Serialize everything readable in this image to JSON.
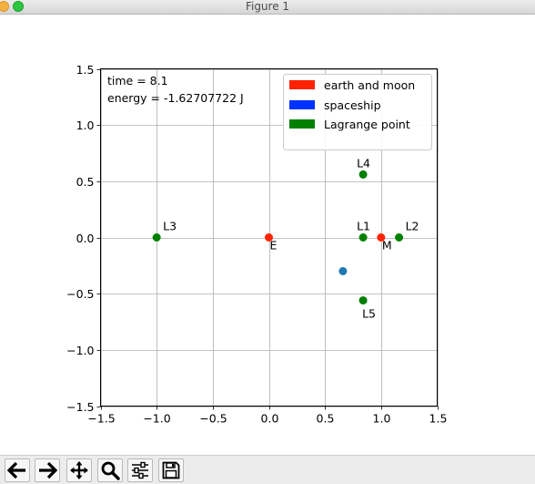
{
  "window": {
    "title": "Figure 1"
  },
  "toolbar": {
    "buttons": [
      {
        "name": "back",
        "icon": "arrow-left-icon"
      },
      {
        "name": "forward",
        "icon": "arrow-right-icon"
      },
      {
        "name": "pan",
        "icon": "move-icon"
      },
      {
        "name": "zoom",
        "icon": "magnifier-icon"
      },
      {
        "name": "configure-subplots",
        "icon": "sliders-icon"
      },
      {
        "name": "save",
        "icon": "floppy-disk-icon"
      }
    ]
  },
  "chart_data": {
    "type": "scatter",
    "title": "",
    "xlabel": "",
    "ylabel": "",
    "xlim": [
      -1.5,
      1.5
    ],
    "ylim": [
      -1.5,
      1.5
    ],
    "grid": true,
    "xticks": [
      "−1.5",
      "−1.0",
      "−0.5",
      "0.0",
      "0.5",
      "1.0",
      "1.5"
    ],
    "yticks": [
      "1.5",
      "1.0",
      "0.5",
      "0.0",
      "−0.5",
      "−1.0",
      "−1.5"
    ],
    "xtick_values": [
      -1.5,
      -1.0,
      -0.5,
      0.0,
      0.5,
      1.0,
      1.5
    ],
    "ytick_values": [
      1.5,
      1.0,
      0.5,
      0.0,
      -0.5,
      -1.0,
      -1.5
    ],
    "info_lines": [
      "time = 8.1",
      "energy = -1.62707722 J"
    ],
    "legend": {
      "position": "upper right",
      "entries": [
        {
          "label": "earth and moon",
          "color": "#ff2200"
        },
        {
          "label": "spaceship",
          "color": "#0033ff"
        },
        {
          "label": "Lagrange point",
          "color": "#008000"
        }
      ]
    },
    "points": [
      {
        "label": "E",
        "x": 0.0,
        "y": 0.0,
        "color": "#ff2200",
        "label_pos": "below-right"
      },
      {
        "label": "M",
        "x": 1.0,
        "y": 0.0,
        "color": "#ff2200",
        "label_pos": "below-right"
      },
      {
        "label": "L1",
        "x": 0.84,
        "y": 0.0,
        "color": "#008000",
        "label_pos": "above"
      },
      {
        "label": "L2",
        "x": 1.16,
        "y": 0.0,
        "color": "#008000",
        "label_pos": "above-right"
      },
      {
        "label": "L3",
        "x": -1.0,
        "y": 0.0,
        "color": "#008000",
        "label_pos": "above-right"
      },
      {
        "label": "L4",
        "x": 0.84,
        "y": 0.56,
        "color": "#008000",
        "label_pos": "above"
      },
      {
        "label": "L5",
        "x": 0.84,
        "y": -0.56,
        "color": "#008000",
        "label_pos": "below"
      },
      {
        "label": "",
        "x": 0.66,
        "y": -0.3,
        "color": "#1f77b4",
        "label_pos": "none"
      }
    ]
  }
}
